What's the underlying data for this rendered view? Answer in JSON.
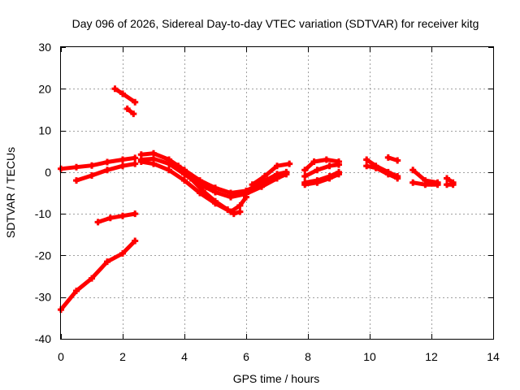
{
  "chart_data": {
    "type": "line",
    "title": "Day 096 of 2026, Sidereal Day-to-day VTEC variation (SDTVAR) for receiver kitg",
    "xlabel": "GPS time / hours",
    "ylabel": "SDTVAR / TECUs",
    "xlim": [
      0,
      14
    ],
    "ylim": [
      -40,
      30
    ],
    "xticks": [
      0,
      2,
      4,
      6,
      8,
      10,
      12,
      14
    ],
    "yticks": [
      -40,
      -30,
      -20,
      -10,
      0,
      10,
      20,
      30
    ],
    "grid": true,
    "color": "#ff0000",
    "series": [
      {
        "name": "s1",
        "points": [
          [
            0,
            0.8
          ],
          [
            0.5,
            1.2
          ],
          [
            1.0,
            1.6
          ],
          [
            1.5,
            2.4
          ],
          [
            2.0,
            3.0
          ],
          [
            2.4,
            3.4
          ]
        ]
      },
      {
        "name": "s2",
        "points": [
          [
            0.5,
            -2.0
          ],
          [
            1.0,
            -0.8
          ],
          [
            1.5,
            0.5
          ],
          [
            2.0,
            1.5
          ],
          [
            2.4,
            2.0
          ]
        ]
      },
      {
        "name": "s3",
        "points": [
          [
            1.2,
            -12.0
          ],
          [
            1.6,
            -11.0
          ],
          [
            2.0,
            -10.5
          ],
          [
            2.4,
            -10.0
          ]
        ]
      },
      {
        "name": "s4",
        "points": [
          [
            0,
            -33
          ],
          [
            0.5,
            -28.5
          ],
          [
            1.0,
            -25.5
          ],
          [
            1.5,
            -21.5
          ],
          [
            2.0,
            -19.5
          ],
          [
            2.4,
            -16.5
          ]
        ]
      },
      {
        "name": "s5",
        "points": [
          [
            1.75,
            20.0
          ],
          [
            2.0,
            18.8
          ],
          [
            2.4,
            16.8
          ]
        ]
      },
      {
        "name": "s6",
        "points": [
          [
            2.15,
            15.2
          ],
          [
            2.35,
            14.0
          ]
        ]
      },
      {
        "name": "s7",
        "points": [
          [
            2.6,
            4.2
          ],
          [
            3.0,
            4.5
          ],
          [
            3.5,
            3.0
          ],
          [
            4.0,
            0.5
          ],
          [
            4.5,
            -2.0
          ],
          [
            5.0,
            -3.8
          ],
          [
            5.5,
            -5.0
          ],
          [
            6.0,
            -4.5
          ],
          [
            6.5,
            -2.5
          ],
          [
            7.0,
            -0.5
          ],
          [
            7.3,
            0.0
          ]
        ]
      },
      {
        "name": "s8",
        "points": [
          [
            2.6,
            3.0
          ],
          [
            3.0,
            3.2
          ],
          [
            3.5,
            2.0
          ],
          [
            4.0,
            -0.5
          ],
          [
            4.5,
            -3.0
          ],
          [
            5.0,
            -4.8
          ],
          [
            5.5,
            -6.0
          ],
          [
            6.0,
            -5.2
          ],
          [
            6.5,
            -3.5
          ],
          [
            7.0,
            -1.5
          ],
          [
            7.3,
            -0.5
          ]
        ]
      },
      {
        "name": "s9",
        "points": [
          [
            2.6,
            2.5
          ],
          [
            3.0,
            2.0
          ],
          [
            3.5,
            0.5
          ],
          [
            4.0,
            -2.0
          ],
          [
            4.5,
            -5.0
          ],
          [
            5.0,
            -7.5
          ],
          [
            5.5,
            -9.5
          ],
          [
            5.8,
            -8.0
          ],
          [
            6.0,
            -6.0
          ]
        ]
      },
      {
        "name": "s10",
        "points": [
          [
            3.8,
            1.5
          ],
          [
            4.2,
            -1.5
          ],
          [
            4.6,
            -4.5
          ],
          [
            5.0,
            -7.0
          ],
          [
            5.4,
            -9.0
          ],
          [
            5.6,
            -10.0
          ],
          [
            5.8,
            -9.5
          ]
        ]
      },
      {
        "name": "s11",
        "points": [
          [
            6.2,
            -3.0
          ],
          [
            6.6,
            -1.0
          ],
          [
            7.0,
            1.5
          ],
          [
            7.4,
            2.0
          ]
        ]
      },
      {
        "name": "s12",
        "points": [
          [
            7.9,
            0.5
          ],
          [
            8.2,
            2.5
          ],
          [
            8.6,
            3.0
          ],
          [
            9.0,
            2.5
          ]
        ]
      },
      {
        "name": "s13",
        "points": [
          [
            7.9,
            -1.0
          ],
          [
            8.3,
            0.5
          ],
          [
            8.7,
            1.5
          ],
          [
            9.0,
            1.8
          ]
        ]
      },
      {
        "name": "s14",
        "points": [
          [
            7.9,
            -2.5
          ],
          [
            8.3,
            -2.0
          ],
          [
            8.7,
            -1.0
          ],
          [
            9.0,
            0.0
          ]
        ]
      },
      {
        "name": "s15",
        "points": [
          [
            7.9,
            -3.0
          ],
          [
            8.3,
            -2.5
          ],
          [
            8.7,
            -1.5
          ],
          [
            9.0,
            -0.5
          ]
        ]
      },
      {
        "name": "s16",
        "points": [
          [
            9.9,
            3.0
          ],
          [
            10.2,
            1.5
          ],
          [
            10.6,
            0.0
          ],
          [
            10.9,
            -1.0
          ]
        ]
      },
      {
        "name": "s17",
        "points": [
          [
            9.9,
            1.5
          ],
          [
            10.2,
            1.0
          ],
          [
            10.6,
            -0.5
          ],
          [
            10.9,
            -1.5
          ]
        ]
      },
      {
        "name": "s18",
        "points": [
          [
            10.6,
            3.5
          ],
          [
            10.9,
            2.8
          ]
        ]
      },
      {
        "name": "s19",
        "points": [
          [
            11.4,
            0.5
          ],
          [
            11.8,
            -2.0
          ],
          [
            12.2,
            -2.5
          ]
        ]
      },
      {
        "name": "s20",
        "points": [
          [
            11.4,
            -2.5
          ],
          [
            11.8,
            -3.0
          ],
          [
            12.2,
            -3.0
          ]
        ]
      },
      {
        "name": "s21",
        "points": [
          [
            12.5,
            -1.5
          ],
          [
            12.7,
            -2.5
          ]
        ]
      },
      {
        "name": "s22",
        "points": [
          [
            12.5,
            -3.0
          ],
          [
            12.7,
            -3.0
          ]
        ]
      }
    ]
  }
}
